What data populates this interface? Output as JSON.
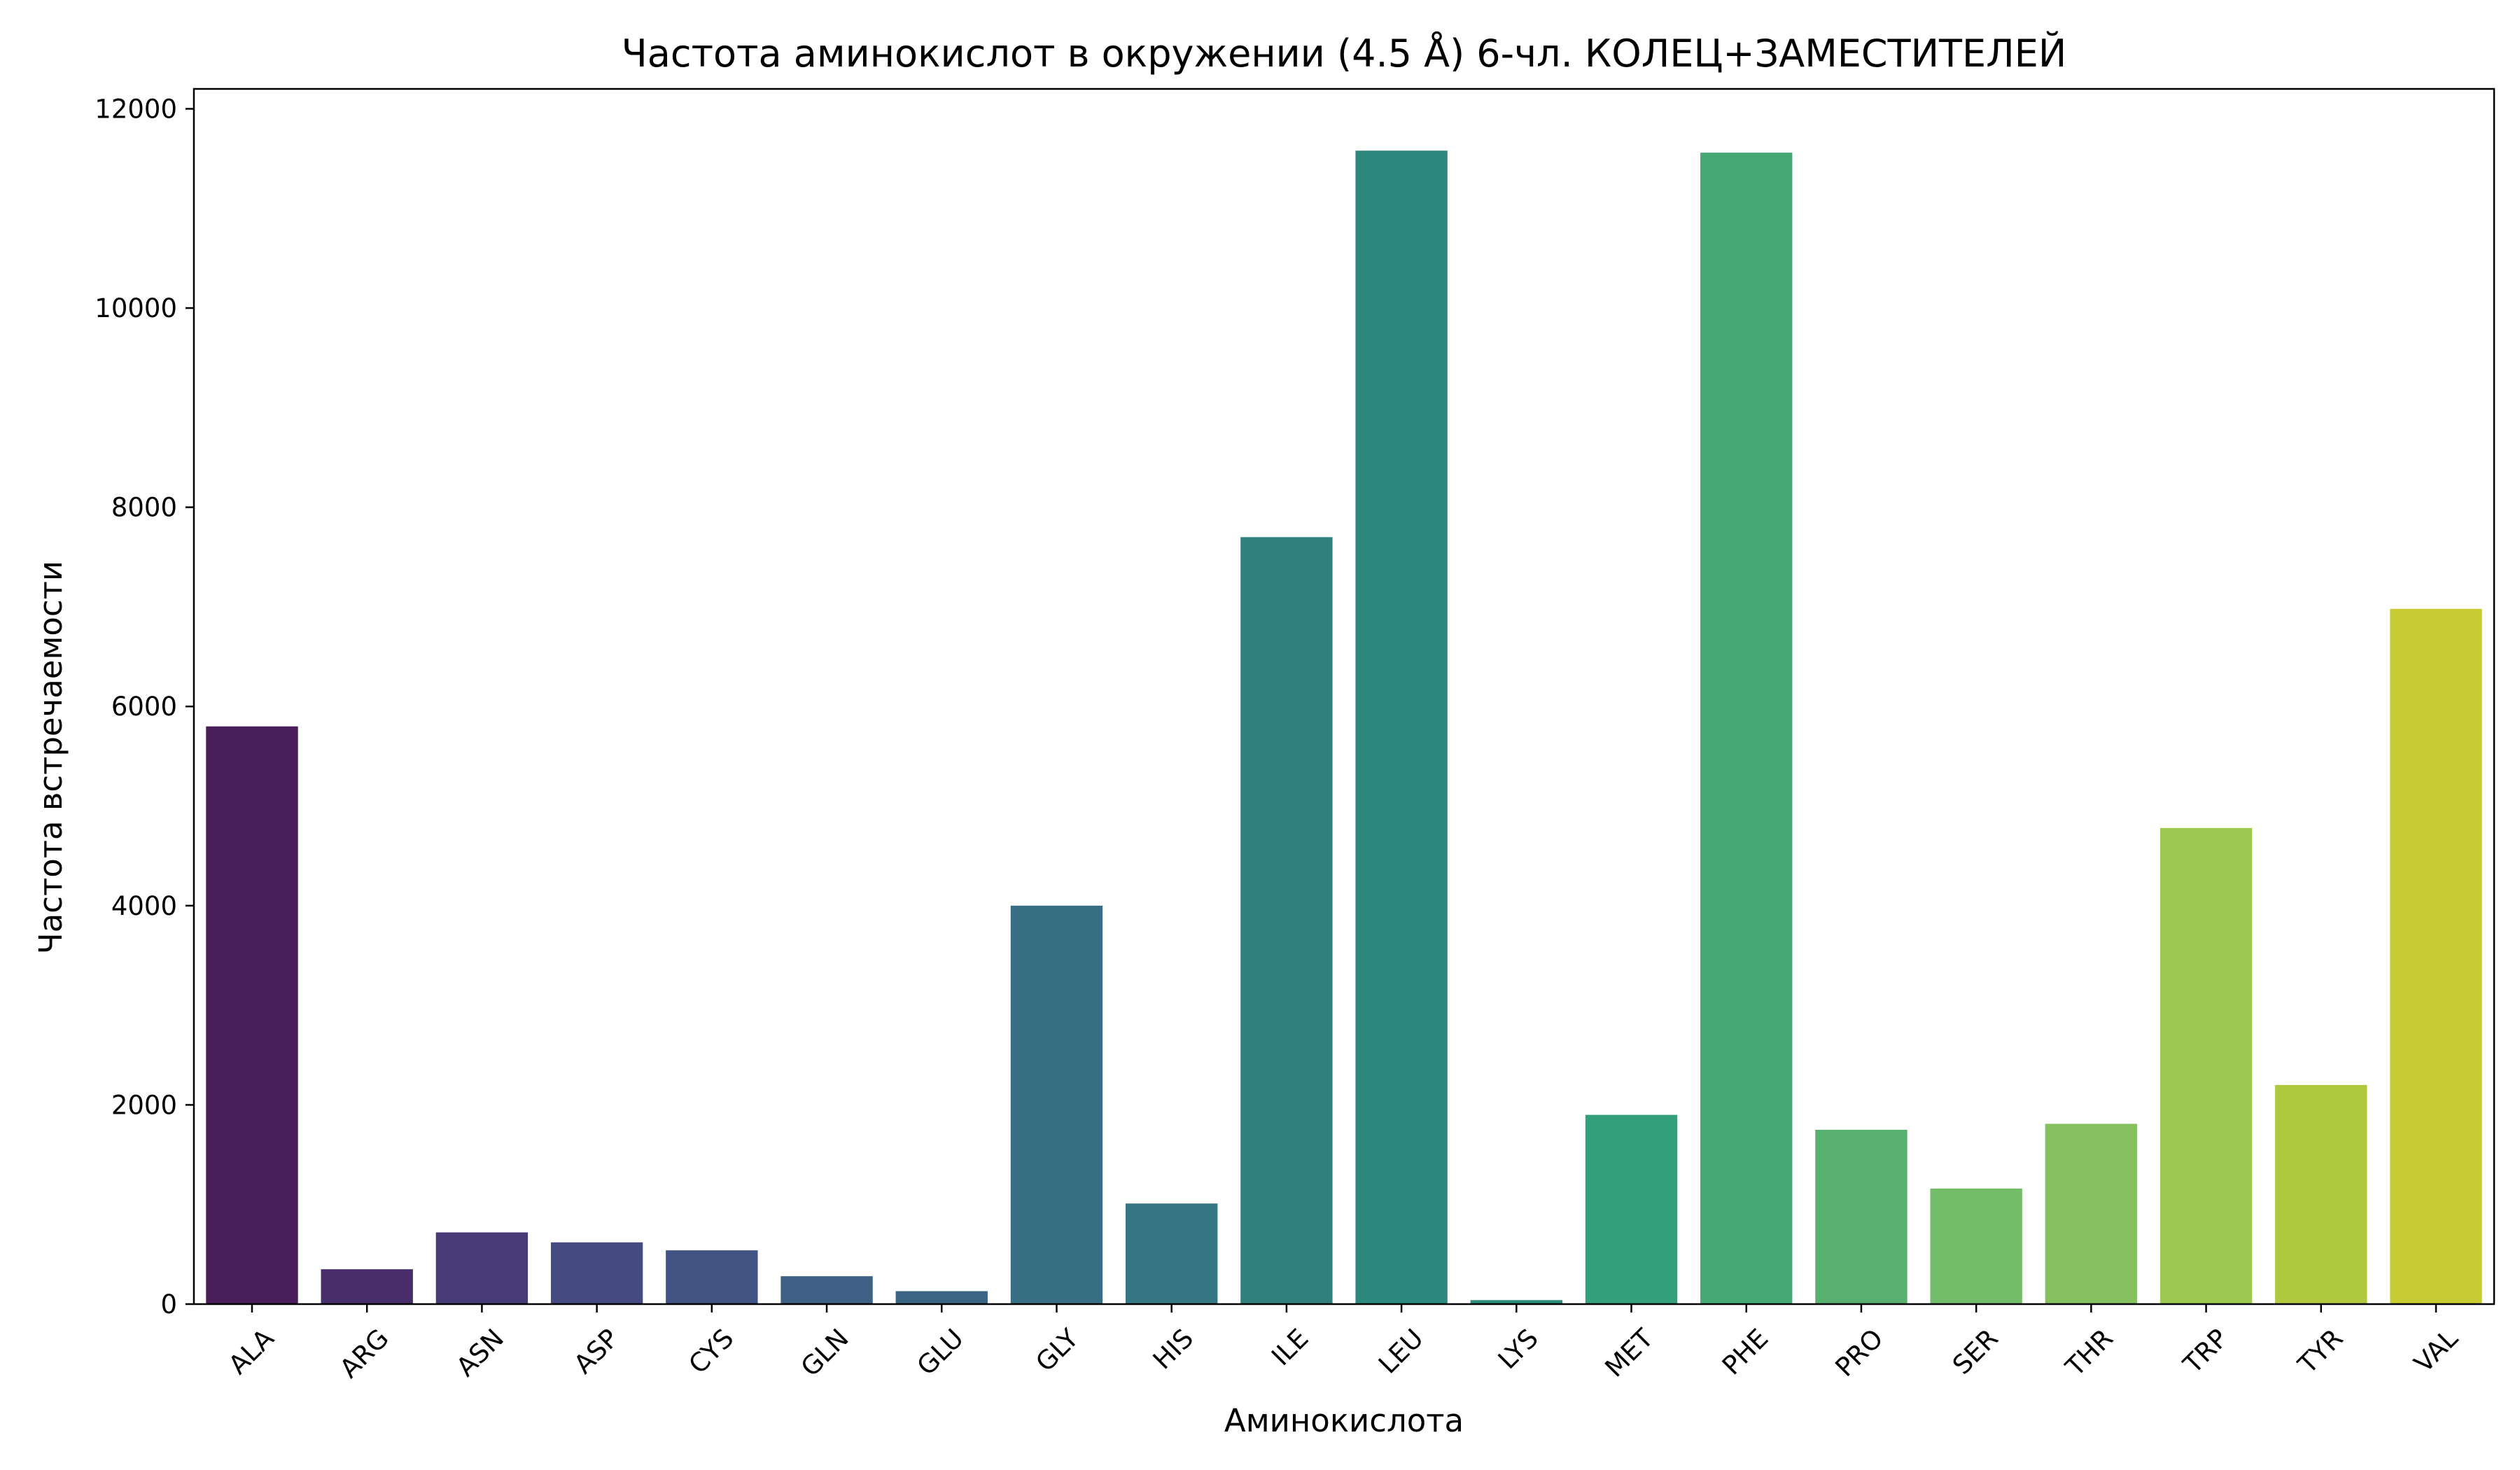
{
  "chart_data": {
    "type": "bar",
    "title": "Частота аминокислот в окружении (4.5 Å) 6-чл. КОЛЕЦ+ЗАМЕСТИТЕЛЕЙ",
    "xlabel": "Аминокислота",
    "ylabel": "Частота встречаемости",
    "categories": [
      "ALA",
      "ARG",
      "ASN",
      "ASP",
      "CYS",
      "GLN",
      "GLU",
      "GLY",
      "HIS",
      "ILE",
      "LEU",
      "LYS",
      "MET",
      "PHE",
      "PRO",
      "SER",
      "THR",
      "TRP",
      "TYR",
      "VAL"
    ],
    "values": [
      5800,
      350,
      720,
      620,
      540,
      280,
      130,
      4000,
      1010,
      7700,
      11580,
      40,
      1900,
      11560,
      1750,
      1160,
      1810,
      4780,
      2200,
      6980
    ],
    "colors": [
      "#481f58",
      "#472e6b",
      "#463a77",
      "#454a80",
      "#415483",
      "#3d6084",
      "#3b6583",
      "#386e83",
      "#357782",
      "#2f807d",
      "#2c887c",
      "#2b8e7a",
      "#33a07b",
      "#45a875",
      "#58b06e",
      "#73bc69",
      "#87c05f",
      "#9dc850",
      "#b0c83e",
      "#c7cc33"
    ],
    "ylim": [
      0,
      12200
    ],
    "yticks": [
      0,
      2000,
      4000,
      6000,
      8000,
      10000,
      12000
    ],
    "grid": false,
    "legend": "none"
  }
}
